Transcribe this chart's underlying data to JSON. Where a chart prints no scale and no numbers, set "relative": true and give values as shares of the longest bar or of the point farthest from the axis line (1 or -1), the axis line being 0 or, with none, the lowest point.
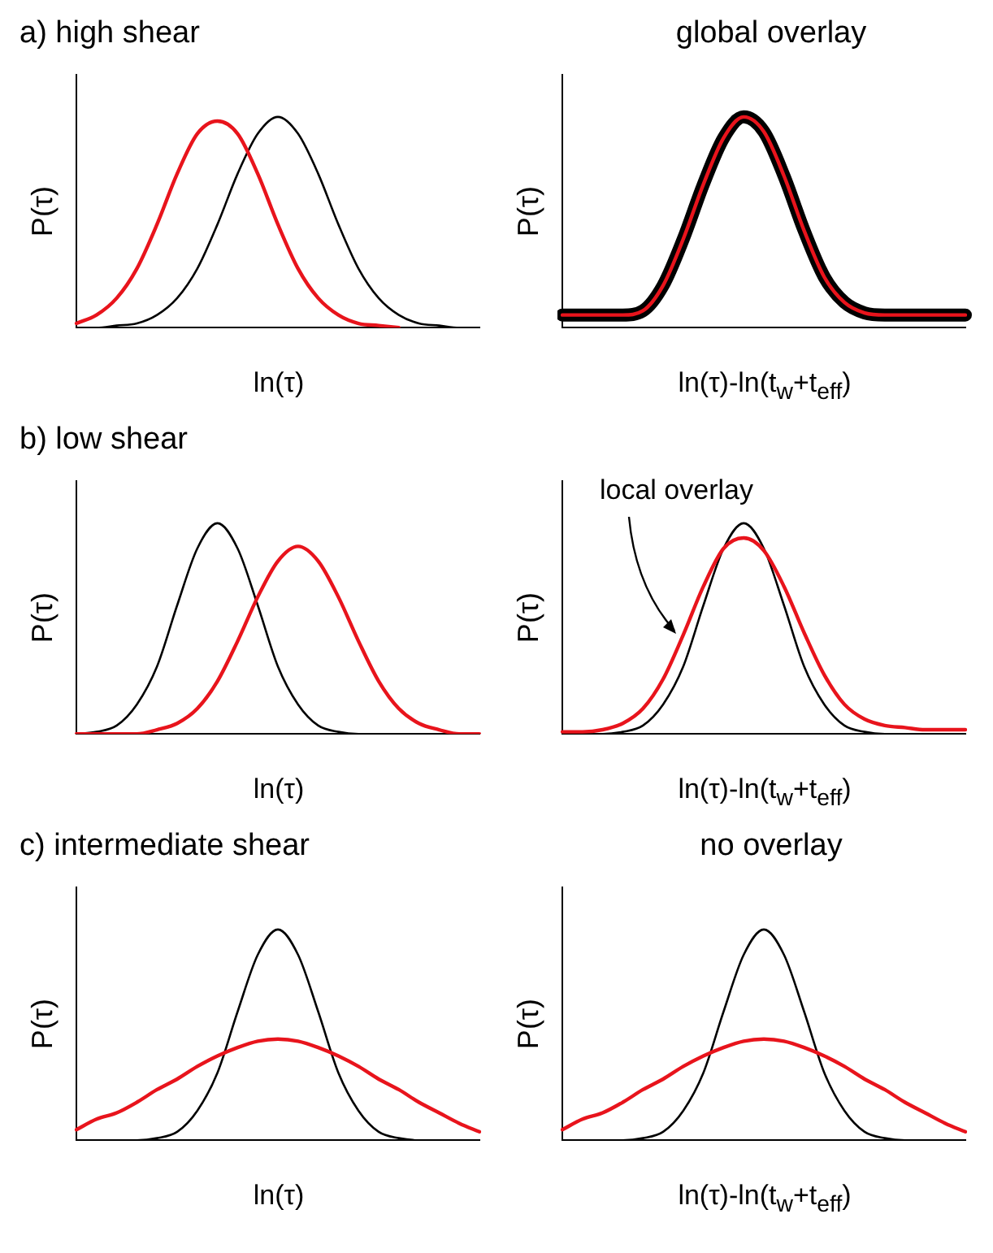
{
  "chart_data": [
    {
      "type": "line",
      "relative": true,
      "title": "a)  high shear",
      "xlabel": "ln(τ)",
      "ylabel": "P(τ)",
      "grid": false,
      "categories": [
        null,
        null,
        null,
        null,
        null,
        null,
        null,
        null,
        null,
        null,
        null,
        null,
        null,
        null,
        null,
        null,
        null,
        null,
        null,
        null,
        null
      ],
      "series": [
        {
          "color": "#000000",
          "values": [
            0,
            0,
            0.01,
            0.02,
            0.06,
            0.14,
            0.28,
            0.49,
            0.73,
            0.92,
            1,
            0.92,
            0.73,
            0.49,
            0.28,
            0.14,
            0.06,
            0.02,
            0.01,
            0,
            0
          ]
        },
        {
          "color": "#e8141c",
          "values": [
            0.02,
            0.06,
            0.14,
            0.28,
            0.49,
            0.73,
            0.92,
            0.98,
            0.92,
            0.73,
            0.49,
            0.28,
            0.14,
            0.06,
            0.02,
            0.01,
            0,
            null,
            null,
            null,
            null
          ]
        }
      ]
    },
    {
      "type": "line",
      "relative": true,
      "title": "global overlay",
      "xlabel": "ln(τ)-ln(t$_{w}$+t$_{eff}$)",
      "ylabel": "P(τ)",
      "grid": false,
      "categories": [
        null,
        null,
        null,
        null,
        null,
        null,
        null,
        null,
        null,
        null,
        null,
        null,
        null,
        null,
        null,
        null,
        null,
        null,
        null,
        null,
        null
      ],
      "series": [
        {
          "color": "#000000",
          "values": [
            0.06,
            0.06,
            0.06,
            0.06,
            0.08,
            0.2,
            0.42,
            0.68,
            0.9,
            1,
            0.93,
            0.72,
            0.46,
            0.24,
            0.12,
            0.07,
            0.06,
            0.06,
            0.06,
            0.06,
            0.06
          ]
        },
        {
          "color": "#e8141c",
          "values": [
            0.06,
            0.06,
            0.06,
            0.06,
            0.08,
            0.2,
            0.42,
            0.68,
            0.9,
            1,
            0.93,
            0.72,
            0.46,
            0.24,
            0.12,
            0.07,
            0.06,
            0.06,
            0.06,
            0.06,
            0.06
          ]
        }
      ]
    },
    {
      "type": "line",
      "relative": true,
      "title": "b)  low shear",
      "xlabel": "ln(τ)",
      "ylabel": "P(τ)",
      "grid": false,
      "categories": [
        null,
        null,
        null,
        null,
        null,
        null,
        null,
        null,
        null,
        null,
        null,
        null,
        null,
        null,
        null,
        null,
        null,
        null,
        null,
        null,
        null
      ],
      "series": [
        {
          "color": "#000000",
          "values": [
            0,
            0.01,
            0.04,
            0.14,
            0.32,
            0.61,
            0.88,
            1,
            0.88,
            0.61,
            0.32,
            0.14,
            0.04,
            0.01,
            0,
            0,
            0,
            0,
            0,
            0,
            0
          ]
        },
        {
          "color": "#e8141c",
          "values": [
            0,
            0,
            0,
            0,
            0.02,
            0.05,
            0.12,
            0.25,
            0.44,
            0.65,
            0.82,
            0.89,
            0.82,
            0.65,
            0.44,
            0.25,
            0.12,
            0.05,
            0.02,
            0,
            0
          ]
        }
      ]
    },
    {
      "type": "line",
      "relative": true,
      "xlabel": "ln(τ)-ln(t$_{w}$+t$_{eff}$)",
      "ylabel": "P(τ)",
      "grid": false,
      "annotations": [
        "local overlay"
      ],
      "categories": [
        null,
        null,
        null,
        null,
        null,
        null,
        null,
        null,
        null,
        null,
        null,
        null,
        null,
        null,
        null,
        null,
        null,
        null,
        null,
        null,
        null
      ],
      "series": [
        {
          "color": "#000000",
          "values": [
            0,
            0,
            0,
            0.01,
            0.04,
            0.14,
            0.32,
            0.61,
            0.88,
            1,
            0.88,
            0.61,
            0.32,
            0.14,
            0.04,
            0.01,
            0,
            0,
            0,
            0,
            0
          ]
        },
        {
          "color": "#e8141c",
          "values": [
            0.01,
            0.01,
            0.02,
            0.05,
            0.12,
            0.26,
            0.47,
            0.7,
            0.88,
            0.93,
            0.87,
            0.7,
            0.48,
            0.28,
            0.14,
            0.07,
            0.04,
            0.03,
            0.02,
            0.02,
            0.02
          ]
        }
      ]
    },
    {
      "type": "line",
      "relative": true,
      "title": "c)  intermediate shear",
      "xlabel": "ln(τ)",
      "ylabel": "P(τ)",
      "grid": false,
      "categories": [
        null,
        null,
        null,
        null,
        null,
        null,
        null,
        null,
        null,
        null,
        null,
        null,
        null,
        null,
        null,
        null,
        null,
        null,
        null,
        null,
        null
      ],
      "series": [
        {
          "color": "#000000",
          "values": [
            0,
            0,
            0,
            0,
            0.01,
            0.04,
            0.14,
            0.32,
            0.61,
            0.88,
            1,
            0.88,
            0.61,
            0.32,
            0.14,
            0.04,
            0.01,
            0,
            0,
            0,
            0
          ]
        },
        {
          "color": "#e8141c",
          "values": [
            0.05,
            0.1,
            0.13,
            0.18,
            0.24,
            0.29,
            0.35,
            0.4,
            0.44,
            0.47,
            0.48,
            0.47,
            0.44,
            0.4,
            0.35,
            0.29,
            0.24,
            0.18,
            0.13,
            0.08,
            0.04
          ]
        }
      ]
    },
    {
      "type": "line",
      "relative": true,
      "title": "no overlay",
      "xlabel": "ln(τ)-ln(t$_{w}$+t$_{eff}$)",
      "ylabel": "P(τ)",
      "grid": false,
      "categories": [
        null,
        null,
        null,
        null,
        null,
        null,
        null,
        null,
        null,
        null,
        null,
        null,
        null,
        null,
        null,
        null,
        null,
        null,
        null,
        null,
        null
      ],
      "series": [
        {
          "color": "#000000",
          "values": [
            0,
            0,
            0,
            0,
            0.01,
            0.04,
            0.14,
            0.32,
            0.61,
            0.88,
            1,
            0.88,
            0.61,
            0.32,
            0.14,
            0.04,
            0.01,
            0,
            0,
            0,
            0
          ]
        },
        {
          "color": "#e8141c",
          "values": [
            0.05,
            0.1,
            0.13,
            0.18,
            0.24,
            0.29,
            0.35,
            0.4,
            0.44,
            0.47,
            0.48,
            0.47,
            0.44,
            0.4,
            0.35,
            0.29,
            0.24,
            0.18,
            0.13,
            0.08,
            0.04
          ]
        }
      ]
    }
  ]
}
